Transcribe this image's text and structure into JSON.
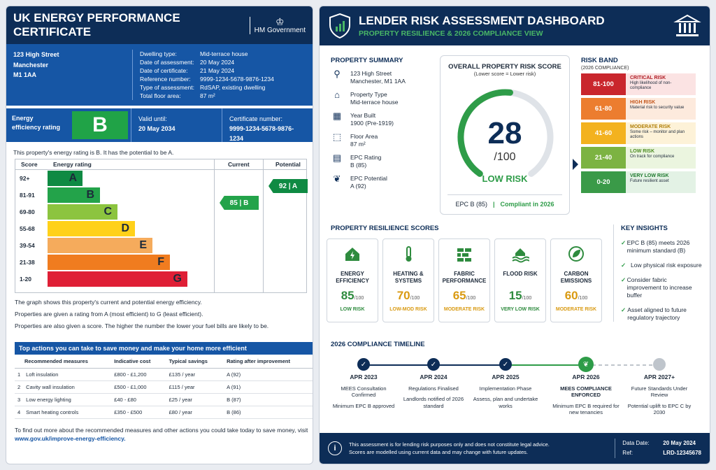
{
  "epc": {
    "title": "UK ENERGY PERFORMANCE CERTIFICATE",
    "gov": "HM Government",
    "address": [
      "123 High Street",
      "Manchester",
      "M1 1AA"
    ],
    "details": [
      {
        "k": "Dwelling type:",
        "v": "Mid-terrace house"
      },
      {
        "k": "Date of assessment:",
        "v": "20 May 2024"
      },
      {
        "k": "Date of certificate:",
        "v": "21 May 2024"
      },
      {
        "k": "Reference number:",
        "v": "9999-1234-5678-9876-1234"
      },
      {
        "k": "Type of assessment:",
        "v": "RdSAP, existing dwelling"
      },
      {
        "k": "Total floor area:",
        "v": "87 m²"
      }
    ],
    "rating_label": "Energy efficiency rating",
    "rating": "B",
    "valid_label": "Valid until:",
    "valid_value": "20 May 2034",
    "cert_label": "Certificate number:",
    "cert_value": "9999-1234-5678-9876-1234",
    "intro": "This property's energy rating is B. It has the potential to be A.",
    "chart": {
      "col_score": "Score",
      "col_rating": "Energy rating",
      "col_current": "Current",
      "col_potential": "Potential",
      "bands": [
        {
          "range": "92+",
          "letter": "A",
          "color": "#0f8a43"
        },
        {
          "range": "81-91",
          "letter": "B",
          "color": "#23a34a"
        },
        {
          "range": "69-80",
          "letter": "C",
          "color": "#8cc43f"
        },
        {
          "range": "55-68",
          "letter": "D",
          "color": "#ffd11a"
        },
        {
          "range": "39-54",
          "letter": "E",
          "color": "#f5ab5c"
        },
        {
          "range": "21-38",
          "letter": "F",
          "color": "#f07c1f"
        },
        {
          "range": "1-20",
          "letter": "G",
          "color": "#df1f36"
        }
      ],
      "current": "85 | B",
      "potential": "92 | A"
    },
    "notes": [
      "The graph shows this property's current and potential energy efficiency.",
      "Properties are given a rating from A (most efficient) to G (least efficient).",
      "Properties are also given a score. The higher the number the lower your fuel bills are likely to be."
    ],
    "actions": {
      "title": "Top actions you can take to save money and make your home more efficient",
      "headers": [
        "Recommended measures",
        "Indicative cost",
        "Typical savings",
        "Rating after improvement"
      ],
      "rows": [
        [
          "1",
          "Loft insulation",
          "£800 - £1,200",
          "£135 / year",
          "A (92)"
        ],
        [
          "2",
          "Cavity wall insulation",
          "£500 - £1,000",
          "£115 / year",
          "A (91)"
        ],
        [
          "3",
          "Low energy lighting",
          "£40 - £80",
          "£25 / year",
          "B (87)"
        ],
        [
          "4",
          "Smart heating controls",
          "£350 - £500",
          "£80 / year",
          "B (86)"
        ]
      ]
    },
    "find_more": "To find out more about the recommended measures and other actions you could take today to save money, visit",
    "link": "www.gov.uk/improve-energy-efficiency."
  },
  "dash": {
    "title": "LENDER RISK ASSESSMENT DASHBOARD",
    "subtitle": "PROPERTY RESILIENCE & 2026 COMPLIANCE VIEW",
    "summary": {
      "title": "PROPERTY SUMMARY",
      "items": [
        {
          "icon": "location-pin-icon",
          "glyph": "⚲",
          "label": "123 High Street",
          "value": "Manchester, M1 1AA"
        },
        {
          "icon": "house-icon",
          "glyph": "⌂",
          "label": "Property Type",
          "value": "Mid-terrace house"
        },
        {
          "icon": "calendar-icon",
          "glyph": "▦",
          "label": "Year Built",
          "value": "1900 (Pre-1919)"
        },
        {
          "icon": "floor-plan-icon",
          "glyph": "⬚",
          "label": "Floor Area",
          "value": "87 m²"
        },
        {
          "icon": "document-icon",
          "glyph": "▤",
          "label": "EPC Rating",
          "value": "B (85)"
        },
        {
          "icon": "leaf-icon",
          "glyph": "❦",
          "label": "EPC Potential",
          "value": "A (92)"
        }
      ]
    },
    "score": {
      "title": "OVERALL PROPERTY RISK SCORE",
      "subtitle": "(Lower score = Lower risk)",
      "value": "28",
      "out_of": "/100",
      "fraction": 0.28,
      "level": "LOW RISK",
      "epc": "EPC B (85)",
      "sep": "|",
      "compliance": "Compliant in 2026"
    },
    "risk_band": {
      "title": "RISK BAND",
      "subtitle": "(2026 COMPLIANCE)",
      "bands": [
        {
          "range": "81-100",
          "name": "CRITICAL RISK",
          "desc": "High likelihood of non-compliance",
          "color": "#c9262d",
          "bg": "#fbe3e3",
          "text": "#b01d25"
        },
        {
          "range": "61-80",
          "name": "HIGH RISK",
          "desc": "Material risk to security value",
          "color": "#ec7d2f",
          "bg": "#fdeadd",
          "text": "#c2551a"
        },
        {
          "range": "41-60",
          "name": "MODERATE RISK",
          "desc": "Some risk – monitor and plan actions",
          "color": "#f3b21f",
          "bg": "#fdf2d8",
          "text": "#b07f08"
        },
        {
          "range": "21-40",
          "name": "LOW RISK",
          "desc": "On track for compliance",
          "color": "#7cb342",
          "bg": "#ebf5df",
          "text": "#4a8a1f"
        },
        {
          "range": "0-20",
          "name": "VERY LOW RISK",
          "desc": "Future resilient asset",
          "color": "#3a9a48",
          "bg": "#e3f2e5",
          "text": "#1f7a2f"
        }
      ]
    },
    "resilience": {
      "title": "PROPERTY RESILIENCE SCORES",
      "cards": [
        {
          "icon": "energy-house-icon",
          "name": "ENERGY EFFICIENCY",
          "value": "85",
          "unit": "/100",
          "risk": "LOW RISK",
          "color": "#2e8b3e"
        },
        {
          "icon": "thermometer-icon",
          "name": "HEATING & SYSTEMS",
          "value": "70",
          "unit": "/100",
          "risk": "LOW-MOD RISK",
          "color": "#d99a12"
        },
        {
          "icon": "brick-wall-icon",
          "name": "FABRIC PERFORMANCE",
          "value": "65",
          "unit": "/100",
          "risk": "MODERATE RISK",
          "color": "#d99a12"
        },
        {
          "icon": "flood-icon",
          "name": "FLOOD RISK",
          "value": "15",
          "unit": "/100",
          "risk": "VERY LOW RISK",
          "color": "#2e8b3e"
        },
        {
          "icon": "leaf-circle-icon",
          "name": "CARBON EMISSIONS",
          "value": "60",
          "unit": "/100",
          "risk": "MODERATE RISK",
          "color": "#d99a12"
        }
      ]
    },
    "insights": {
      "title": "KEY INSIGHTS",
      "items": [
        "EPC B (85) meets 2026 minimum standard (B)",
        "Low physical risk exposure",
        "Consider fabric improvement to increase buffer",
        "Asset aligned to future regulatory trajectory"
      ]
    },
    "timeline": {
      "title": "2026 COMPLIANCE TIMELINE",
      "steps": [
        {
          "year": "APR 2023",
          "title": "MEES Consultation Confirmed",
          "desc": "Minimum EPC B approved"
        },
        {
          "year": "APR 2024",
          "title": "Regulations Finalised",
          "desc": "Landlords notified of 2026 standard"
        },
        {
          "year": "APR 2025",
          "title": "Implementation Phase",
          "desc": "Assess, plan and undertake works"
        },
        {
          "year": "APR 2026",
          "title": "MEES COMPLIANCE ENFORCED",
          "desc": "Minimum EPC B required for new tenancies"
        },
        {
          "year": "APR 2027+",
          "title": "Future Standards Under Review",
          "desc": "Potential uplift to EPC C by 2030"
        }
      ]
    },
    "footer": {
      "text1": "This assessment is for lending risk purposes only and does not constitute legal advice.",
      "text2": "Scores are modelled using current data and may change with future updates.",
      "date_label": "Data Date:",
      "date_value": "20 May 2024",
      "ref_label": "Ref:",
      "ref_value": "LRD-12345678"
    }
  }
}
